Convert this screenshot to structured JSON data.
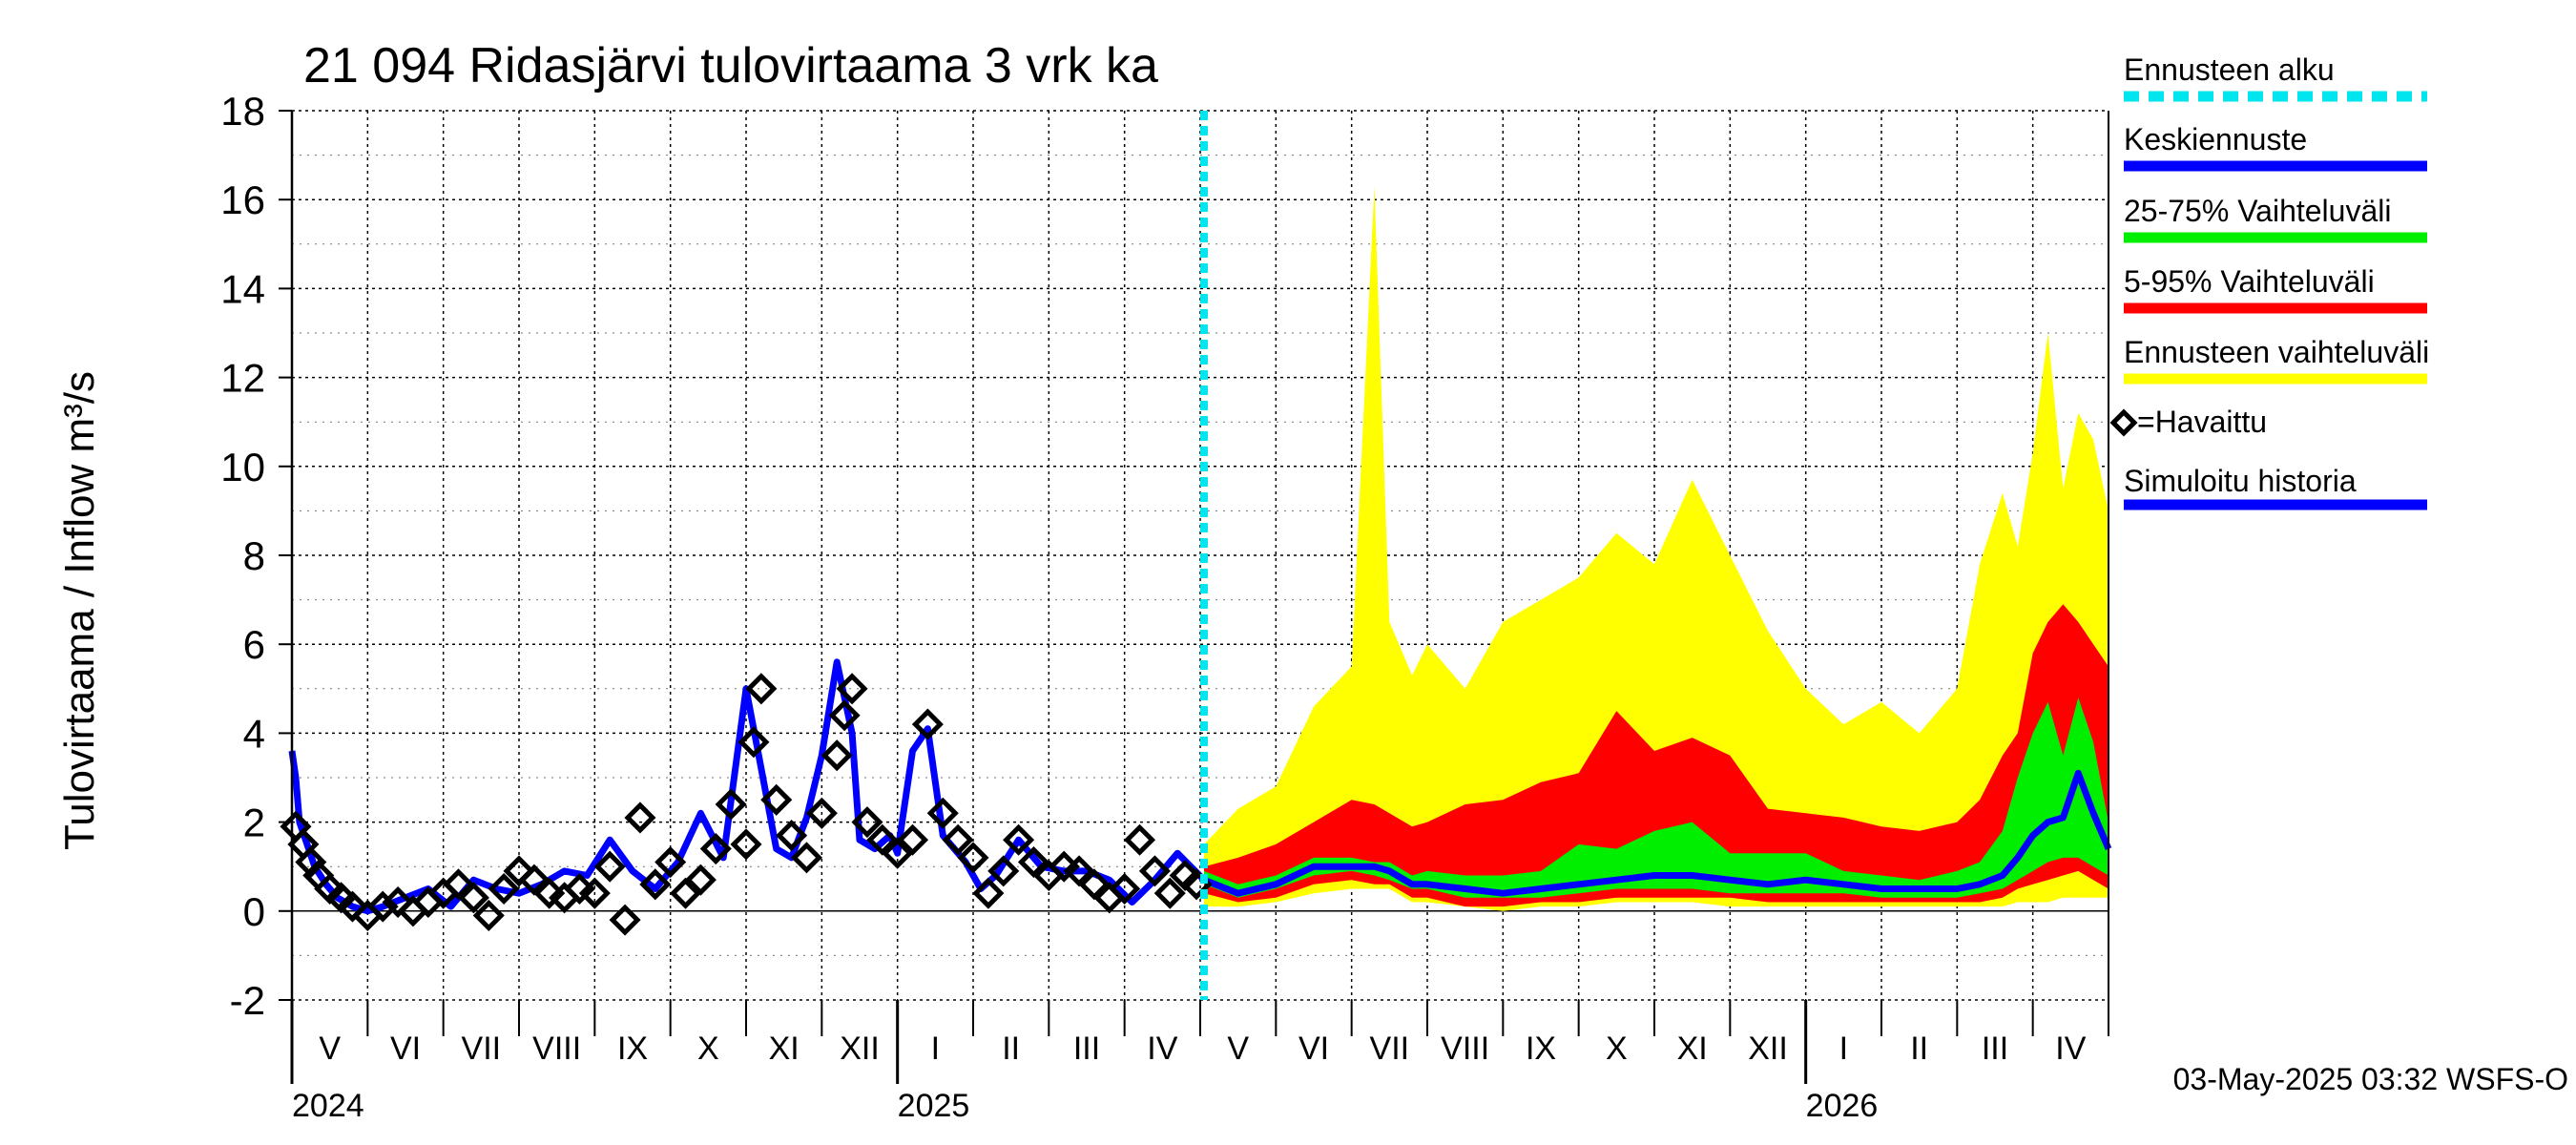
{
  "chart_data": {
    "type": "area",
    "title": "21 094 Ridasjärvi tulovirtaama 3 vrk ka",
    "ylabel": "Tulovirtaama / Inflow    m³/s",
    "ylim": [
      -2,
      18
    ],
    "yticks": [
      "-2",
      "0",
      "2",
      "4",
      "6",
      "8",
      "10",
      "12",
      "14",
      "16",
      "18"
    ],
    "xrange_months": [
      0,
      24
    ],
    "forecast_start_month": 12.05,
    "month_labels": [
      "V",
      "VI",
      "VII",
      "VIII",
      "IX",
      "X",
      "XI",
      "XII",
      "I",
      "II",
      "III",
      "IV",
      "V",
      "VI",
      "VII",
      "VIII",
      "IX",
      "X",
      "XI",
      "XII",
      "I",
      "II",
      "III",
      "IV"
    ],
    "year_labels": [
      {
        "label": "2024",
        "month": 0
      },
      {
        "label": "2025",
        "month": 8
      },
      {
        "label": "2026",
        "month": 20
      }
    ],
    "legend": [
      {
        "label": "Ennusteen alku",
        "color": "#00e5ee",
        "style": "dashed"
      },
      {
        "label": "Keskiennuste",
        "color": "#0000ff",
        "style": "solid"
      },
      {
        "label": "25-75% Vaihteluväli",
        "color": "#00ee00",
        "style": "solid"
      },
      {
        "label": "5-95% Vaihteluväli",
        "color": "#ff0000",
        "style": "solid"
      },
      {
        "label": "Ennusteen vaihteluväli",
        "color": "#ffff00",
        "style": "solid"
      },
      {
        "label": "=Havaittu",
        "color": "#000000",
        "style": "diamond"
      },
      {
        "label": "Simuloitu historia",
        "color": "#0000ff",
        "style": "solid"
      }
    ],
    "simulated_history": {
      "x": [
        0,
        0.05,
        0.1,
        0.2,
        0.3,
        0.45,
        0.6,
        0.8,
        1.0,
        1.2,
        1.5,
        1.8,
        2.1,
        2.4,
        2.7,
        3.0,
        3.3,
        3.6,
        3.9,
        4.2,
        4.5,
        4.8,
        5.1,
        5.4,
        5.7,
        6.0,
        6.2,
        6.4,
        6.6,
        6.8,
        7.0,
        7.2,
        7.4,
        7.5,
        7.7,
        7.9,
        8.0,
        8.2,
        8.4,
        8.6,
        8.9,
        9.1,
        9.3,
        9.6,
        9.9,
        10.2,
        10.5,
        10.8,
        11.1,
        11.4,
        11.7,
        12.05
      ],
      "y": [
        3.6,
        3.0,
        2.0,
        1.5,
        1.0,
        0.6,
        0.3,
        0.1,
        0.0,
        0.1,
        0.3,
        0.5,
        0.1,
        0.7,
        0.5,
        0.4,
        0.6,
        0.9,
        0.8,
        1.6,
        0.9,
        0.5,
        1.1,
        2.2,
        1.2,
        5.0,
        3.2,
        1.4,
        1.2,
        2.1,
        3.5,
        5.6,
        4.0,
        1.6,
        1.4,
        1.7,
        1.3,
        3.6,
        4.1,
        1.7,
        1.1,
        0.5,
        0.8,
        1.6,
        1.0,
        0.9,
        0.9,
        0.7,
        0.2,
        0.7,
        1.3,
        0.7
      ]
    },
    "observed": {
      "x": [
        0.05,
        0.15,
        0.25,
        0.35,
        0.5,
        0.65,
        0.8,
        1.0,
        1.2,
        1.4,
        1.6,
        1.8,
        2.0,
        2.2,
        2.4,
        2.6,
        2.8,
        3.0,
        3.2,
        3.4,
        3.6,
        3.8,
        4.0,
        4.2,
        4.4,
        4.6,
        4.8,
        5.0,
        5.2,
        5.4,
        5.6,
        5.8,
        6.0,
        6.1,
        6.2,
        6.4,
        6.6,
        6.8,
        7.0,
        7.2,
        7.3,
        7.4,
        7.6,
        7.8,
        8.0,
        8.2,
        8.4,
        8.6,
        8.8,
        9.0,
        9.2,
        9.4,
        9.6,
        9.8,
        10.0,
        10.2,
        10.4,
        10.6,
        10.8,
        11.0,
        11.2,
        11.4,
        11.6,
        11.8,
        11.95
      ],
      "y": [
        1.9,
        1.5,
        1.1,
        0.8,
        0.5,
        0.3,
        0.1,
        -0.1,
        0.1,
        0.2,
        0.0,
        0.2,
        0.4,
        0.6,
        0.3,
        -0.1,
        0.5,
        0.9,
        0.7,
        0.4,
        0.3,
        0.5,
        0.4,
        1.0,
        -0.2,
        2.1,
        0.6,
        1.1,
        0.4,
        0.7,
        1.4,
        2.4,
        1.5,
        3.8,
        5.0,
        2.5,
        1.7,
        1.2,
        2.2,
        3.5,
        4.4,
        5.0,
        2.0,
        1.6,
        1.3,
        1.6,
        4.2,
        2.2,
        1.6,
        1.2,
        0.4,
        0.9,
        1.6,
        1.1,
        0.8,
        1.0,
        0.9,
        0.6,
        0.3,
        0.5,
        1.6,
        0.9,
        0.4,
        0.8,
        0.6
      ]
    },
    "forecast": {
      "x": [
        12.05,
        12.5,
        13.0,
        13.5,
        14.0,
        14.3,
        14.5,
        14.8,
        15.0,
        15.5,
        16.0,
        16.5,
        17.0,
        17.5,
        18.0,
        18.5,
        19.0,
        19.5,
        20.0,
        20.5,
        21.0,
        21.5,
        22.0,
        22.3,
        22.6,
        22.8,
        23.0,
        23.2,
        23.4,
        23.6,
        23.8,
        24.0
      ],
      "median": [
        0.7,
        0.4,
        0.6,
        1.0,
        1.0,
        1.0,
        0.9,
        0.6,
        0.6,
        0.5,
        0.4,
        0.5,
        0.6,
        0.7,
        0.8,
        0.8,
        0.7,
        0.6,
        0.7,
        0.6,
        0.5,
        0.5,
        0.5,
        0.6,
        0.8,
        1.2,
        1.7,
        2.0,
        2.1,
        3.1,
        2.2,
        1.4
      ],
      "p25": [
        0.6,
        0.3,
        0.5,
        0.8,
        0.9,
        0.8,
        0.7,
        0.5,
        0.5,
        0.3,
        0.3,
        0.3,
        0.4,
        0.5,
        0.5,
        0.5,
        0.4,
        0.4,
        0.4,
        0.4,
        0.3,
        0.3,
        0.3,
        0.4,
        0.5,
        0.7,
        0.9,
        1.1,
        1.2,
        1.2,
        1.0,
        0.8
      ],
      "p75": [
        0.9,
        0.6,
        0.8,
        1.2,
        1.2,
        1.1,
        1.1,
        0.8,
        0.9,
        0.8,
        0.8,
        0.9,
        1.5,
        1.4,
        1.8,
        2.0,
        1.3,
        1.3,
        1.3,
        0.9,
        0.8,
        0.7,
        0.9,
        1.1,
        1.8,
        3.0,
        4.0,
        4.7,
        3.5,
        4.8,
        3.8,
        2.0
      ],
      "p5": [
        0.4,
        0.2,
        0.3,
        0.6,
        0.7,
        0.6,
        0.6,
        0.3,
        0.3,
        0.1,
        0.1,
        0.2,
        0.2,
        0.3,
        0.3,
        0.3,
        0.3,
        0.2,
        0.2,
        0.2,
        0.2,
        0.2,
        0.2,
        0.2,
        0.3,
        0.5,
        0.6,
        0.7,
        0.8,
        0.9,
        0.7,
        0.5
      ],
      "p95": [
        1.0,
        1.2,
        1.5,
        2.0,
        2.5,
        2.4,
        2.2,
        1.9,
        2.0,
        2.4,
        2.5,
        2.9,
        3.1,
        4.5,
        3.6,
        3.9,
        3.5,
        2.3,
        2.2,
        2.1,
        1.9,
        1.8,
        2.0,
        2.5,
        3.5,
        4.0,
        5.8,
        6.5,
        6.9,
        6.5,
        6.0,
        5.5
      ],
      "low": [
        0.1,
        0.1,
        0.2,
        0.4,
        0.5,
        0.5,
        0.5,
        0.2,
        0.2,
        0.1,
        0.0,
        0.1,
        0.1,
        0.2,
        0.2,
        0.2,
        0.1,
        0.1,
        0.1,
        0.1,
        0.1,
        0.1,
        0.1,
        0.1,
        0.1,
        0.2,
        0.2,
        0.2,
        0.3,
        0.3,
        0.3,
        0.3
      ],
      "high": [
        1.5,
        2.3,
        2.8,
        4.6,
        5.5,
        16.3,
        6.5,
        5.3,
        6.0,
        5.0,
        6.5,
        7.0,
        7.5,
        8.5,
        7.8,
        9.7,
        8.0,
        6.3,
        5.0,
        4.2,
        4.7,
        4.0,
        5.0,
        7.8,
        9.4,
        8.2,
        10.3,
        13.0,
        9.5,
        11.2,
        10.6,
        9.0
      ]
    }
  },
  "footer": {
    "timestamp": "03-May-2025 03:32 WSFS-O"
  }
}
